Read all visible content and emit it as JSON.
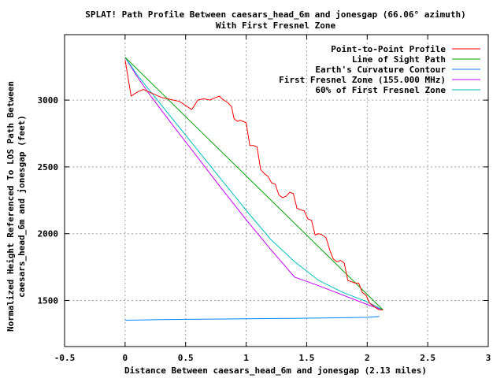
{
  "chart_data": {
    "type": "line",
    "title": "SPLAT! Path Profile Between caesars_head_6m and jonesgap (66.06° azimuth)",
    "subtitle": "With First Fresnel Zone",
    "xlabel": "Distance Between caesars_head_6m and jonesgap (2.13 miles)",
    "ylabel_line1": "Normalized Height Referenced To LOS Path Between",
    "ylabel_line2": "caesars_head_6m and jonesgap (feet)",
    "xlim": [
      -0.5,
      3
    ],
    "ylim": [
      1155,
      3490
    ],
    "x_ticks": [
      -0.5,
      0,
      0.5,
      1,
      1.5,
      2,
      2.5,
      3
    ],
    "x_tick_labels": [
      "-0.5",
      "0",
      "0.5",
      "1",
      "1.5",
      "2",
      "2.5",
      "3"
    ],
    "y_ticks": [
      1500,
      2000,
      2500,
      3000
    ],
    "y_tick_labels": [
      "1500",
      "2000",
      "2500",
      "3000"
    ],
    "grid": true,
    "legend_position": "top-right",
    "series": [
      {
        "name": "Point-to-Point Profile",
        "color": "#ff0000",
        "x": [
          0,
          0.05,
          0.1,
          0.15,
          0.2,
          0.25,
          0.3,
          0.35,
          0.4,
          0.45,
          0.5,
          0.55,
          0.58,
          0.6,
          0.65,
          0.7,
          0.75,
          0.78,
          0.8,
          0.85,
          0.88,
          0.9,
          0.93,
          0.95,
          1.0,
          1.03,
          1.06,
          1.09,
          1.12,
          1.15,
          1.18,
          1.21,
          1.24,
          1.27,
          1.3,
          1.33,
          1.36,
          1.39,
          1.42,
          1.45,
          1.48,
          1.51,
          1.54,
          1.57,
          1.6,
          1.63,
          1.66,
          1.69,
          1.72,
          1.75,
          1.78,
          1.81,
          1.84,
          1.87,
          1.9,
          1.93,
          1.96,
          1.99,
          2.02,
          2.05,
          2.08,
          2.1,
          2.13
        ],
        "y": [
          3300,
          3030,
          3060,
          3080,
          3060,
          3040,
          3020,
          3010,
          3000,
          2990,
          2960,
          2930,
          2970,
          3000,
          3010,
          3000,
          3020,
          3030,
          3010,
          2980,
          2950,
          2860,
          2840,
          2850,
          2830,
          2660,
          2660,
          2650,
          2480,
          2450,
          2430,
          2380,
          2370,
          2290,
          2270,
          2280,
          2310,
          2300,
          2190,
          2180,
          2170,
          2110,
          2100,
          1990,
          2000,
          1990,
          1970,
          1880,
          1810,
          1790,
          1800,
          1780,
          1650,
          1640,
          1630,
          1630,
          1560,
          1540,
          1480,
          1460,
          1440,
          1430,
          1430
        ]
      },
      {
        "name": "Line of Sight Path",
        "color": "#00a000",
        "x": [
          0,
          2.13
        ],
        "y": [
          3320,
          1430
        ]
      },
      {
        "name": "Earth's Curvature Contour",
        "color": "#0080ff",
        "x": [
          0,
          0.25,
          0.5,
          0.75,
          1.0,
          1.25,
          1.5,
          1.75,
          2.0,
          2.1
        ],
        "y": [
          1352,
          1356,
          1359,
          1361,
          1363,
          1365,
          1367,
          1370,
          1374,
          1380
        ]
      },
      {
        "name": "First Fresnel Zone (155.000 MHz)",
        "color": "#c000ff",
        "x": [
          0,
          0.1,
          0.2,
          0.4,
          0.6,
          0.8,
          1.0,
          1.2,
          1.4,
          1.6,
          1.8,
          2.0,
          2.13
        ],
        "y": [
          3320,
          3175,
          3045,
          2805,
          2570,
          2335,
          2105,
          1885,
          1675,
          1610,
          1540,
          1470,
          1430
        ]
      },
      {
        "name": "60% of First Fresnel Zone",
        "color": "#00c0c0",
        "x": [
          0,
          0.1,
          0.2,
          0.4,
          0.6,
          0.8,
          1.0,
          1.2,
          1.4,
          1.6,
          1.8,
          2.0,
          2.13
        ],
        "y": [
          3320,
          3190,
          3075,
          2850,
          2625,
          2400,
          2175,
          1960,
          1790,
          1650,
          1560,
          1490,
          1430
        ]
      }
    ]
  }
}
